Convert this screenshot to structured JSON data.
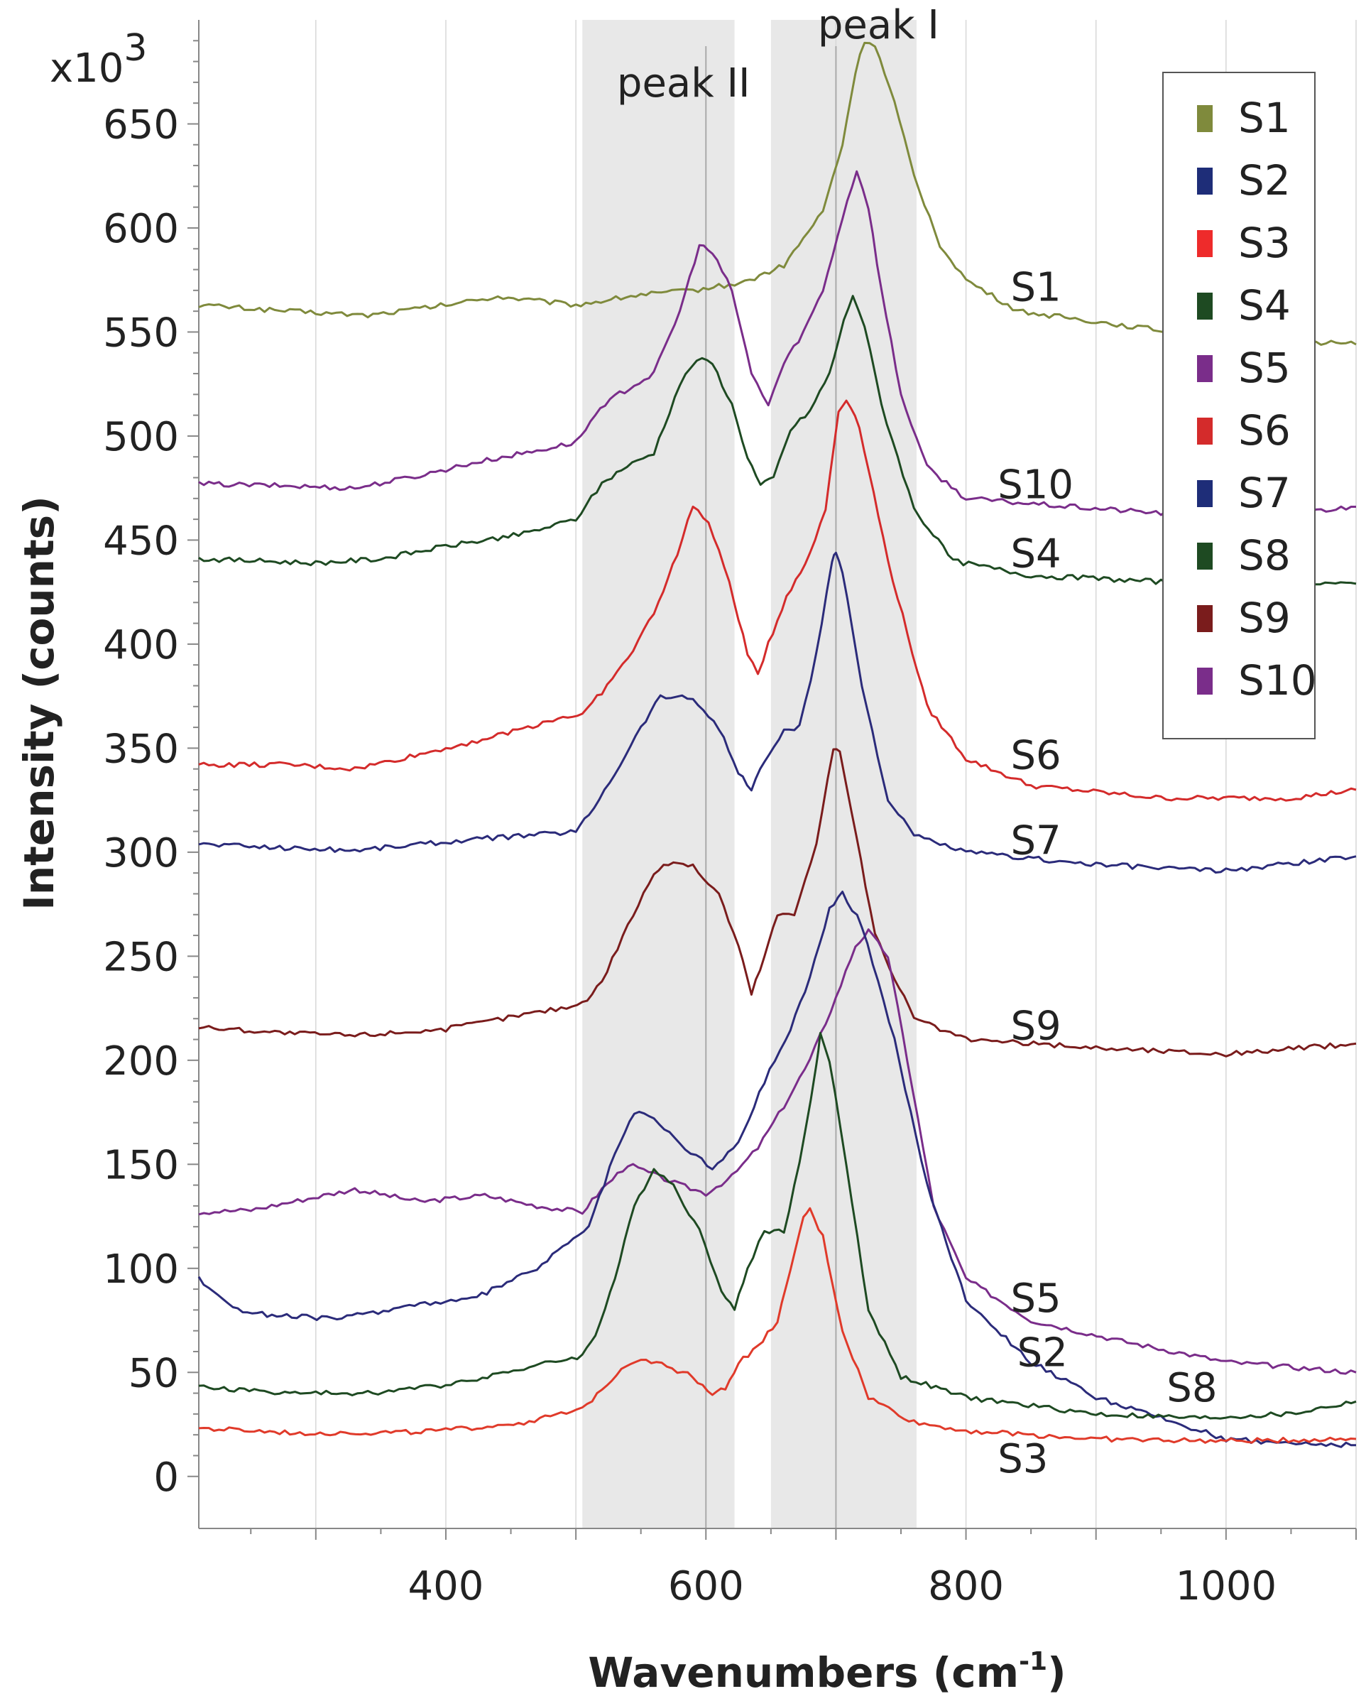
{
  "chart_data": {
    "type": "line",
    "title": "",
    "xlabel": "Wavenumbers (cm",
    "xlabel_sup": "-1",
    "xlabel_close": ")",
    "ylabel": "Intensity (counts)",
    "y_multiplier_base": "x10",
    "y_multiplier_exp": "3",
    "xlim": [
      210,
      1100
    ],
    "ylim": [
      -25,
      700
    ],
    "x_ticks": [
      400,
      600,
      800,
      1000
    ],
    "y_ticks": [
      0,
      50,
      100,
      150,
      200,
      250,
      300,
      350,
      400,
      450,
      500,
      550,
      600,
      650
    ],
    "grid": "vertical",
    "bands": [
      {
        "label": "peak II",
        "from": 505,
        "to": 622
      },
      {
        "label": "peak I",
        "from": 650,
        "to": 762
      }
    ],
    "band_center_lines": [
      600,
      700
    ],
    "legend_position": "top-right",
    "series": [
      {
        "name": "S1",
        "color": "#7f8a3c",
        "label": "S1",
        "label_at": [
          830,
          563
        ],
        "points": [
          [
            210,
            563
          ],
          [
            280,
            560
          ],
          [
            340,
            558
          ],
          [
            400,
            563
          ],
          [
            440,
            567
          ],
          [
            500,
            563
          ],
          [
            550,
            568
          ],
          [
            590,
            570
          ],
          [
            630,
            574
          ],
          [
            660,
            582
          ],
          [
            690,
            608
          ],
          [
            705,
            640
          ],
          [
            715,
            675
          ],
          [
            722,
            690
          ],
          [
            730,
            688
          ],
          [
            745,
            660
          ],
          [
            760,
            625
          ],
          [
            780,
            592
          ],
          [
            800,
            575
          ],
          [
            840,
            560
          ],
          [
            900,
            555
          ],
          [
            960,
            550
          ],
          [
            1000,
            548
          ],
          [
            1050,
            546
          ],
          [
            1100,
            544
          ]
        ]
      },
      {
        "name": "S10",
        "color": "#7a2d8a",
        "label": "S10",
        "label_at": [
          820,
          468
        ],
        "points": [
          [
            210,
            477
          ],
          [
            280,
            476
          ],
          [
            330,
            475
          ],
          [
            380,
            481
          ],
          [
            420,
            487
          ],
          [
            470,
            493
          ],
          [
            500,
            497
          ],
          [
            515,
            510
          ],
          [
            530,
            519
          ],
          [
            560,
            530
          ],
          [
            580,
            560
          ],
          [
            595,
            592
          ],
          [
            605,
            588
          ],
          [
            620,
            570
          ],
          [
            635,
            530
          ],
          [
            648,
            515
          ],
          [
            660,
            535
          ],
          [
            675,
            550
          ],
          [
            690,
            570
          ],
          [
            705,
            605
          ],
          [
            716,
            628
          ],
          [
            725,
            610
          ],
          [
            735,
            570
          ],
          [
            750,
            520
          ],
          [
            770,
            485
          ],
          [
            800,
            470
          ],
          [
            880,
            466
          ],
          [
            950,
            463
          ],
          [
            1050,
            463
          ],
          [
            1100,
            466
          ]
        ]
      },
      {
        "name": "S4",
        "color": "#1e4a22",
        "label": "S4",
        "label_at": [
          830,
          435
        ],
        "points": [
          [
            210,
            441
          ],
          [
            300,
            439
          ],
          [
            350,
            441
          ],
          [
            400,
            447
          ],
          [
            460,
            453
          ],
          [
            500,
            460
          ],
          [
            520,
            477
          ],
          [
            535,
            484
          ],
          [
            560,
            492
          ],
          [
            580,
            525
          ],
          [
            593,
            537
          ],
          [
            605,
            535
          ],
          [
            620,
            515
          ],
          [
            632,
            490
          ],
          [
            642,
            476
          ],
          [
            652,
            480
          ],
          [
            665,
            503
          ],
          [
            680,
            512
          ],
          [
            695,
            530
          ],
          [
            706,
            555
          ],
          [
            713,
            568
          ],
          [
            722,
            553
          ],
          [
            735,
            515
          ],
          [
            760,
            465
          ],
          [
            790,
            440
          ],
          [
            850,
            433
          ],
          [
            950,
            430
          ],
          [
            1100,
            429
          ]
        ]
      },
      {
        "name": "S6",
        "color": "#d42b2b",
        "label": "S6",
        "label_at": [
          830,
          338
        ],
        "points": [
          [
            210,
            342
          ],
          [
            280,
            342
          ],
          [
            330,
            340
          ],
          [
            380,
            347
          ],
          [
            440,
            356
          ],
          [
            490,
            365
          ],
          [
            505,
            366
          ],
          [
            520,
            377
          ],
          [
            540,
            393
          ],
          [
            560,
            415
          ],
          [
            578,
            443
          ],
          [
            590,
            467
          ],
          [
            602,
            458
          ],
          [
            618,
            430
          ],
          [
            632,
            395
          ],
          [
            640,
            386
          ],
          [
            648,
            400
          ],
          [
            662,
            423
          ],
          [
            680,
            443
          ],
          [
            692,
            465
          ],
          [
            702,
            512
          ],
          [
            708,
            518
          ],
          [
            718,
            505
          ],
          [
            740,
            440
          ],
          [
            770,
            370
          ],
          [
            800,
            345
          ],
          [
            850,
            332
          ],
          [
            950,
            326
          ],
          [
            1050,
            326
          ],
          [
            1100,
            330
          ]
        ]
      },
      {
        "name": "S7",
        "color": "#2b2b7a",
        "label": "S7",
        "label_at": [
          830,
          297
        ],
        "points": [
          [
            210,
            304
          ],
          [
            280,
            302
          ],
          [
            330,
            301
          ],
          [
            400,
            305
          ],
          [
            460,
            308
          ],
          [
            500,
            310
          ],
          [
            510,
            318
          ],
          [
            530,
            338
          ],
          [
            550,
            360
          ],
          [
            565,
            375
          ],
          [
            590,
            374
          ],
          [
            610,
            360
          ],
          [
            625,
            338
          ],
          [
            635,
            330
          ],
          [
            645,
            344
          ],
          [
            660,
            358
          ],
          [
            672,
            360
          ],
          [
            685,
            395
          ],
          [
            697,
            440
          ],
          [
            700,
            445
          ],
          [
            705,
            435
          ],
          [
            720,
            380
          ],
          [
            740,
            325
          ],
          [
            760,
            308
          ],
          [
            800,
            300
          ],
          [
            900,
            294
          ],
          [
            1000,
            291
          ],
          [
            1100,
            298
          ]
        ]
      },
      {
        "name": "S9",
        "color": "#7a1c1c",
        "label": "S9",
        "label_at": [
          830,
          208
        ],
        "points": [
          [
            210,
            216
          ],
          [
            280,
            213
          ],
          [
            330,
            212
          ],
          [
            400,
            215
          ],
          [
            460,
            222
          ],
          [
            505,
            227
          ],
          [
            520,
            238
          ],
          [
            540,
            265
          ],
          [
            560,
            290
          ],
          [
            575,
            296
          ],
          [
            590,
            293
          ],
          [
            610,
            280
          ],
          [
            625,
            255
          ],
          [
            635,
            232
          ],
          [
            645,
            250
          ],
          [
            655,
            270
          ],
          [
            668,
            270
          ],
          [
            685,
            305
          ],
          [
            698,
            350
          ],
          [
            703,
            348
          ],
          [
            712,
            320
          ],
          [
            730,
            260
          ],
          [
            760,
            220
          ],
          [
            800,
            210
          ],
          [
            900,
            206
          ],
          [
            1000,
            203
          ],
          [
            1100,
            208
          ]
        ]
      },
      {
        "name": "S5",
        "color": "#7a2d8a",
        "label": "S5",
        "label_at": [
          830,
          77
        ],
        "points": [
          [
            210,
            127
          ],
          [
            250,
            128
          ],
          [
            290,
            133
          ],
          [
            330,
            138
          ],
          [
            380,
            132
          ],
          [
            430,
            135
          ],
          [
            470,
            130
          ],
          [
            505,
            127
          ],
          [
            520,
            138
          ],
          [
            540,
            150
          ],
          [
            560,
            145
          ],
          [
            580,
            140
          ],
          [
            600,
            136
          ],
          [
            620,
            144
          ],
          [
            640,
            158
          ],
          [
            660,
            178
          ],
          [
            680,
            200
          ],
          [
            700,
            230
          ],
          [
            715,
            255
          ],
          [
            725,
            262
          ],
          [
            740,
            250
          ],
          [
            755,
            200
          ],
          [
            775,
            130
          ],
          [
            800,
            95
          ],
          [
            850,
            75
          ],
          [
            920,
            65
          ],
          [
            1000,
            55
          ],
          [
            1100,
            50
          ]
        ]
      },
      {
        "name": "S2",
        "color": "#2b2b7a",
        "label": "S2",
        "label_at": [
          835,
          51
        ],
        "points": [
          [
            210,
            95
          ],
          [
            240,
            80
          ],
          [
            270,
            77
          ],
          [
            320,
            76
          ],
          [
            380,
            83
          ],
          [
            420,
            85
          ],
          [
            470,
            100
          ],
          [
            510,
            120
          ],
          [
            530,
            155
          ],
          [
            545,
            175
          ],
          [
            560,
            172
          ],
          [
            580,
            160
          ],
          [
            605,
            148
          ],
          [
            625,
            160
          ],
          [
            645,
            190
          ],
          [
            665,
            215
          ],
          [
            680,
            240
          ],
          [
            695,
            273
          ],
          [
            705,
            280
          ],
          [
            720,
            265
          ],
          [
            745,
            210
          ],
          [
            770,
            140
          ],
          [
            800,
            85
          ],
          [
            850,
            55
          ],
          [
            900,
            38
          ],
          [
            950,
            28
          ],
          [
            1000,
            18
          ],
          [
            1050,
            16
          ],
          [
            1100,
            15
          ]
        ]
      },
      {
        "name": "S8",
        "color": "#1e4a22",
        "label": "S8",
        "label_at": [
          950,
          34
        ],
        "points": [
          [
            210,
            43
          ],
          [
            280,
            40
          ],
          [
            340,
            40
          ],
          [
            400,
            44
          ],
          [
            460,
            52
          ],
          [
            505,
            58
          ],
          [
            515,
            68
          ],
          [
            530,
            95
          ],
          [
            545,
            130
          ],
          [
            560,
            148
          ],
          [
            575,
            140
          ],
          [
            595,
            118
          ],
          [
            612,
            90
          ],
          [
            622,
            80
          ],
          [
            632,
            100
          ],
          [
            645,
            118
          ],
          [
            660,
            118
          ],
          [
            672,
            150
          ],
          [
            685,
            198
          ],
          [
            688,
            212
          ],
          [
            695,
            200
          ],
          [
            708,
            150
          ],
          [
            725,
            80
          ],
          [
            750,
            48
          ],
          [
            800,
            38
          ],
          [
            900,
            30
          ],
          [
            980,
            28
          ],
          [
            1050,
            30
          ],
          [
            1100,
            36
          ]
        ]
      },
      {
        "name": "S3",
        "color": "#e03a2a",
        "label": "S3",
        "label_at": [
          820,
          0
        ],
        "points": [
          [
            210,
            23
          ],
          [
            280,
            21
          ],
          [
            350,
            21
          ],
          [
            400,
            22
          ],
          [
            460,
            26
          ],
          [
            505,
            32
          ],
          [
            520,
            42
          ],
          [
            535,
            52
          ],
          [
            550,
            57
          ],
          [
            570,
            53
          ],
          [
            590,
            48
          ],
          [
            605,
            40
          ],
          [
            615,
            42
          ],
          [
            625,
            55
          ],
          [
            640,
            62
          ],
          [
            655,
            75
          ],
          [
            665,
            98
          ],
          [
            675,
            125
          ],
          [
            680,
            128
          ],
          [
            690,
            115
          ],
          [
            705,
            70
          ],
          [
            725,
            38
          ],
          [
            760,
            26
          ],
          [
            800,
            22
          ],
          [
            900,
            18
          ],
          [
            1000,
            17
          ],
          [
            1100,
            18
          ]
        ]
      }
    ],
    "legend": [
      {
        "label": "S1",
        "color": "#7f8a3c"
      },
      {
        "label": "S2",
        "color": "#1e2d78"
      },
      {
        "label": "S3",
        "color": "#ee2b2b"
      },
      {
        "label": "S4",
        "color": "#1e4a22"
      },
      {
        "label": "S5",
        "color": "#7a2d8a"
      },
      {
        "label": "S6",
        "color": "#d42b2b"
      },
      {
        "label": "S7",
        "color": "#1e2d78"
      },
      {
        "label": "S8",
        "color": "#1e4a22"
      },
      {
        "label": "S9",
        "color": "#7a1c1c"
      },
      {
        "label": "S10",
        "color": "#7a2d8a"
      }
    ]
  }
}
